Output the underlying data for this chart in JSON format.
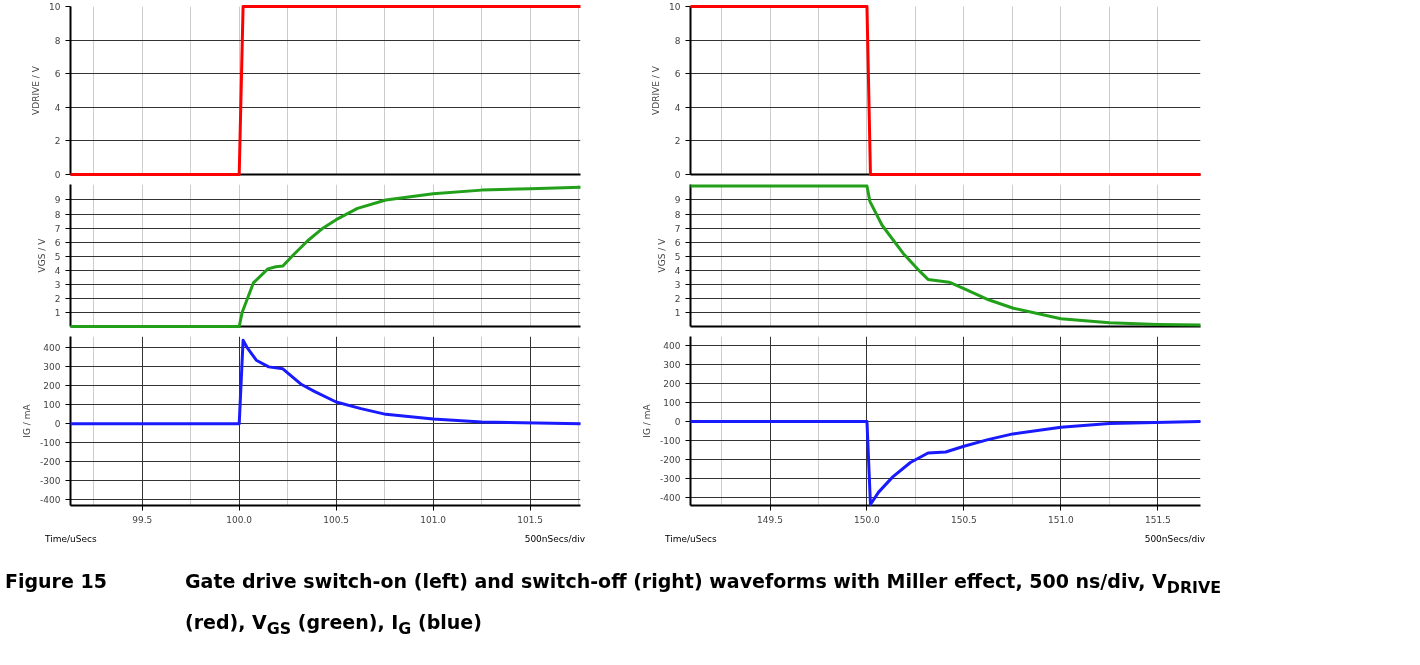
{
  "chart_data": [
    {
      "type": "line",
      "ylabel": "VDRIVE / V",
      "x": [
        99.13,
        100.0,
        100.02,
        101.76
      ],
      "series": [
        {
          "color": "#ff0000",
          "values": [
            0,
            0,
            10,
            10
          ]
        }
      ],
      "xlim": [
        99.13,
        101.76
      ],
      "ylim": [
        0,
        10
      ],
      "xticks": [
        {
          "value": 99.25,
          "label": null
        },
        {
          "value": 99.5,
          "label": null
        },
        {
          "value": 99.75,
          "label": null
        },
        {
          "value": 100.0,
          "label": null
        },
        {
          "value": 100.25,
          "label": null
        },
        {
          "value": 100.5,
          "label": null
        },
        {
          "value": 100.75,
          "label": null
        },
        {
          "value": 101.0,
          "label": null
        },
        {
          "value": 101.25,
          "label": null
        },
        {
          "value": 101.5,
          "label": null
        },
        {
          "value": 101.75,
          "label": null
        }
      ],
      "yticks": [
        0,
        2,
        4,
        6,
        8,
        10
      ],
      "grid": true,
      "tick_labels": "y"
    },
    {
      "type": "line",
      "ylabel": "VGS / V",
      "x": [
        99.13,
        100.0,
        100.015,
        100.073,
        100.148,
        100.189,
        100.225,
        100.28,
        100.353,
        100.427,
        100.5,
        100.61,
        100.756,
        101.0,
        101.25,
        101.5,
        101.76
      ],
      "series": [
        {
          "color": "#22a01a",
          "values": [
            0,
            0,
            1.0,
            3.1,
            4.1,
            4.25,
            4.3,
            5.1,
            6.1,
            6.95,
            7.6,
            8.4,
            9.0,
            9.45,
            9.7,
            9.8,
            9.9
          ]
        }
      ],
      "xlim": [
        99.13,
        101.76
      ],
      "ylim": [
        0,
        10.1
      ],
      "xticks": [
        {
          "value": 99.25,
          "label": null
        },
        {
          "value": 99.5,
          "label": null
        },
        {
          "value": 99.75,
          "label": null
        },
        {
          "value": 100.0,
          "label": null
        },
        {
          "value": 100.25,
          "label": null
        },
        {
          "value": 100.5,
          "label": null
        },
        {
          "value": 100.75,
          "label": null
        },
        {
          "value": 101.0,
          "label": null
        },
        {
          "value": 101.25,
          "label": null
        },
        {
          "value": 101.5,
          "label": null
        },
        {
          "value": 101.75,
          "label": null
        }
      ],
      "yticks": [
        1,
        2,
        3,
        4,
        5,
        6,
        7,
        8,
        9
      ],
      "grid": true,
      "tick_labels": "y"
    },
    {
      "type": "line",
      "ylabel": "IG / mA",
      "xlabel": "Time/uSecs",
      "annotations": [
        "500nSecs/div"
      ],
      "x": [
        99.13,
        100.0,
        100.02,
        100.042,
        100.088,
        100.152,
        100.225,
        100.317,
        100.39,
        100.5,
        100.628,
        100.756,
        101.0,
        101.25,
        101.76
      ],
      "series": [
        {
          "color": "#1a1aff",
          "values": [
            0,
            0,
            440,
            400,
            335,
            300,
            290,
            210,
            170,
            115,
            80,
            50,
            25,
            10,
            0
          ]
        }
      ],
      "xlim": [
        99.13,
        101.76
      ],
      "ylim": [
        -430,
        460
      ],
      "xticks": [
        {
          "value": 99.25,
          "label": null
        },
        {
          "value": 99.5,
          "label": "99.5"
        },
        {
          "value": 99.75,
          "label": null
        },
        {
          "value": 100.0,
          "label": "100.0"
        },
        {
          "value": 100.25,
          "label": null
        },
        {
          "value": 100.5,
          "label": "100.5"
        },
        {
          "value": 100.75,
          "label": null
        },
        {
          "value": 101.0,
          "label": "101.0"
        },
        {
          "value": 101.25,
          "label": null
        },
        {
          "value": 101.5,
          "label": "101.5"
        },
        {
          "value": 101.75,
          "label": null
        }
      ],
      "yticks": [
        -400,
        -300,
        -200,
        -100,
        0,
        100,
        200,
        300,
        400
      ],
      "grid": true
    },
    {
      "type": "line",
      "ylabel": "VDRIVE / V",
      "x": [
        149.09,
        150.0,
        150.018,
        151.72
      ],
      "series": [
        {
          "color": "#ff0000",
          "values": [
            10,
            10,
            0,
            0
          ]
        }
      ],
      "xlim": [
        149.09,
        151.72
      ],
      "ylim": [
        0,
        10
      ],
      "xticks": [
        {
          "value": 149.25,
          "label": null
        },
        {
          "value": 149.5,
          "label": null
        },
        {
          "value": 149.75,
          "label": null
        },
        {
          "value": 150.0,
          "label": null
        },
        {
          "value": 150.25,
          "label": null
        },
        {
          "value": 150.5,
          "label": null
        },
        {
          "value": 150.75,
          "label": null
        },
        {
          "value": 151.0,
          "label": null
        },
        {
          "value": 151.25,
          "label": null
        },
        {
          "value": 151.5,
          "label": null
        }
      ],
      "yticks": [
        0,
        2,
        4,
        6,
        8,
        10
      ],
      "grid": true,
      "tick_labels": "y"
    },
    {
      "type": "line",
      "ylabel": "VGS / V",
      "x": [
        149.09,
        150.0,
        150.015,
        150.078,
        150.187,
        150.26,
        150.315,
        150.424,
        150.5,
        150.627,
        150.755,
        151.0,
        151.25,
        151.5,
        151.72
      ],
      "series": [
        {
          "color": "#22a01a",
          "values": [
            10,
            10,
            8.9,
            7.2,
            5.2,
            4.1,
            3.35,
            3.15,
            2.7,
            1.9,
            1.3,
            0.55,
            0.27,
            0.15,
            0.1
          ]
        }
      ],
      "xlim": [
        149.09,
        151.72
      ],
      "ylim": [
        0,
        10.1
      ],
      "xticks": [
        {
          "value": 149.25,
          "label": null
        },
        {
          "value": 149.5,
          "label": null
        },
        {
          "value": 149.75,
          "label": null
        },
        {
          "value": 150.0,
          "label": null
        },
        {
          "value": 150.25,
          "label": null
        },
        {
          "value": 150.5,
          "label": null
        },
        {
          "value": 150.75,
          "label": null
        },
        {
          "value": 151.0,
          "label": null
        },
        {
          "value": 151.25,
          "label": null
        },
        {
          "value": 151.5,
          "label": null
        }
      ],
      "yticks": [
        1,
        2,
        3,
        4,
        5,
        6,
        7,
        8,
        9
      ],
      "grid": true,
      "tick_labels": "y"
    },
    {
      "type": "line",
      "ylabel": "IG / mA",
      "xlabel": "Time/uSecs",
      "annotations": [
        "500nSecs/div",
        "Figure 15",
        "Gate drive switch-on (left) and switch-off (right) waveforms with Miller effect, 500 ns/div, V$_{DRIVE}$ (red), V$_{GS}$ (green), I$_{G}$ (blue)"
      ],
      "x": [
        149.09,
        150.0,
        150.018,
        150.06,
        150.133,
        150.224,
        150.315,
        150.406,
        150.5,
        150.624,
        150.752,
        151.0,
        151.25,
        151.72
      ],
      "series": [
        {
          "color": "#1a1aff",
          "values": [
            0,
            0,
            -435,
            -370,
            -290,
            -215,
            -165,
            -160,
            -130,
            -95,
            -65,
            -30,
            -10,
            0
          ]
        }
      ],
      "xlim": [
        149.09,
        151.72
      ],
      "ylim": [
        -440,
        445
      ],
      "xticks": [
        {
          "value": 149.25,
          "label": null
        },
        {
          "value": 149.5,
          "label": "149.5"
        },
        {
          "value": 149.75,
          "label": null
        },
        {
          "value": 150.0,
          "label": "150.0"
        },
        {
          "value": 150.25,
          "label": null
        },
        {
          "value": 150.5,
          "label": "150.5"
        },
        {
          "value": 150.75,
          "label": null
        },
        {
          "value": 151.0,
          "label": "151.0"
        },
        {
          "value": 151.25,
          "label": null
        },
        {
          "value": 151.5,
          "label": "151.5"
        }
      ],
      "yticks": [
        -400,
        -300,
        -200,
        -100,
        0,
        100,
        200,
        300,
        400
      ],
      "grid": true
    }
  ]
}
